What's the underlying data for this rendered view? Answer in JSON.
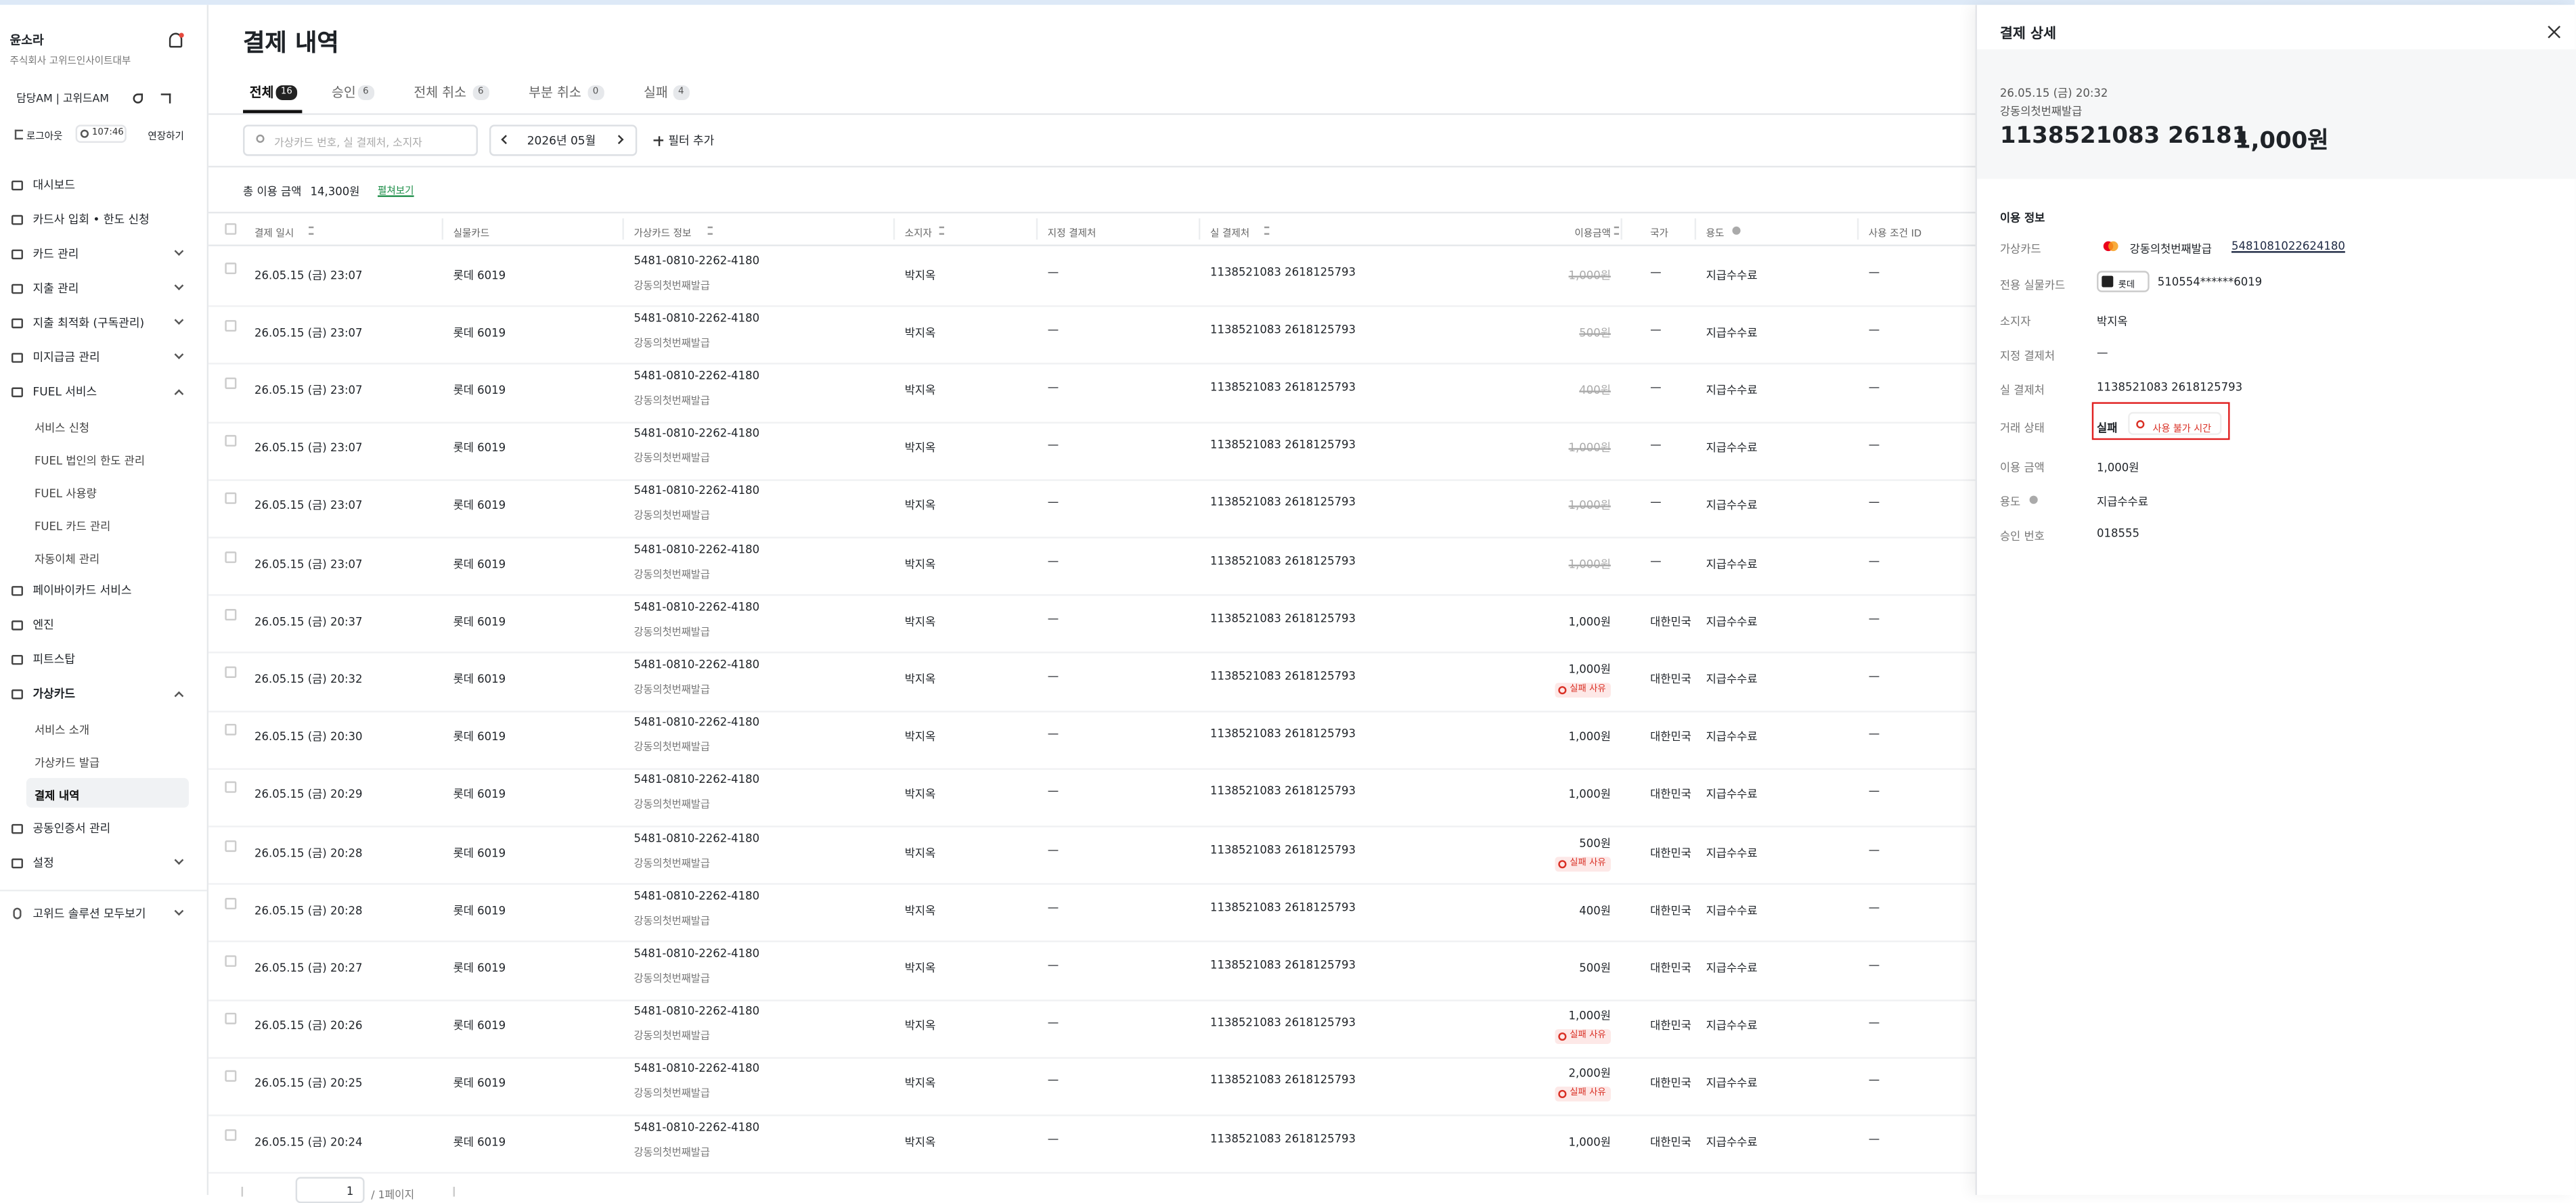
{
  "sidebar": {
    "user": "윤소라",
    "company": "주식회사 고위드인사이트대부",
    "manager": "담당AM | 고위드AM",
    "logout": "로그아웃",
    "timer": "107:46",
    "extend": "연장하기",
    "nav": [
      {
        "label": "대시보드"
      },
      {
        "label": "카드사 입회 • 한도 신청"
      },
      {
        "label": "카드 관리",
        "chevron": "down"
      },
      {
        "label": "지출 관리",
        "chevron": "down"
      },
      {
        "label": "지출 최적화 (구독관리)",
        "chevron": "down"
      },
      {
        "label": "미지급금 관리",
        "chevron": "down"
      },
      {
        "label": "FUEL 서비스",
        "chevron": "up",
        "children": [
          {
            "label": "서비스 신청"
          },
          {
            "label": "FUEL 법인의 한도 관리"
          },
          {
            "label": "FUEL 사용량"
          },
          {
            "label": "FUEL 카드 관리"
          },
          {
            "label": "자동이체 관리"
          }
        ]
      },
      {
        "label": "페이바이카드 서비스"
      },
      {
        "label": "엔진"
      },
      {
        "label": "피트스탑"
      },
      {
        "label": "가상카드",
        "chevron": "up",
        "bold": true,
        "children": [
          {
            "label": "서비스 소개"
          },
          {
            "label": "가상카드 발급"
          },
          {
            "label": "결제 내역",
            "active": true
          }
        ]
      },
      {
        "label": "공동인증서 관리"
      },
      {
        "label": "설정",
        "chevron": "down"
      }
    ],
    "solutions": "고위드 솔루션 모두보기"
  },
  "main": {
    "title": "결제 내역",
    "tabs": [
      {
        "label": "전체",
        "count": "16",
        "active": true
      },
      {
        "label": "승인",
        "count": "6"
      },
      {
        "label": "전체 취소",
        "count": "6"
      },
      {
        "label": "부분 취소",
        "count": "0"
      },
      {
        "label": "실패",
        "count": "4"
      }
    ],
    "search_placeholder": "가상카드 번호, 실 결제처, 소지자",
    "month": "2026년 05월",
    "add_filter": "필터 추가",
    "summary": {
      "label": "총 이용 금액",
      "value": "14,300원",
      "expand": "펼쳐보기"
    },
    "columns": [
      {
        "label": "결제 일시",
        "sort": true
      },
      {
        "label": "실물카드"
      },
      {
        "label": "가상카드 정보",
        "sort": true
      },
      {
        "label": "소지자",
        "sort": true
      },
      {
        "label": "지정 결제처"
      },
      {
        "label": "실 결제처",
        "sort": true
      },
      {
        "label": "이용금액",
        "sort": true
      },
      {
        "label": "국가"
      },
      {
        "label": "용도",
        "info": true
      },
      {
        "label": "사용 조건 ID"
      }
    ],
    "rows": [
      {
        "date": "26.05.15 (금) 23:07",
        "card": "롯데 6019",
        "vcard": "5481-0810-2262-4180",
        "vcard_name": "강동의첫번째발급",
        "holder": "박지옥",
        "designated": "—",
        "merchant": "1138521083 2618125793",
        "amount": "1,000원",
        "strike": true,
        "country": "—",
        "purpose": "지급수수료",
        "condition": "—"
      },
      {
        "date": "26.05.15 (금) 23:07",
        "card": "롯데 6019",
        "vcard": "5481-0810-2262-4180",
        "vcard_name": "강동의첫번째발급",
        "holder": "박지옥",
        "designated": "—",
        "merchant": "1138521083 2618125793",
        "amount": "500원",
        "strike": true,
        "country": "—",
        "purpose": "지급수수료",
        "condition": "—"
      },
      {
        "date": "26.05.15 (금) 23:07",
        "card": "롯데 6019",
        "vcard": "5481-0810-2262-4180",
        "vcard_name": "강동의첫번째발급",
        "holder": "박지옥",
        "designated": "—",
        "merchant": "1138521083 2618125793",
        "amount": "400원",
        "strike": true,
        "country": "—",
        "purpose": "지급수수료",
        "condition": "—"
      },
      {
        "date": "26.05.15 (금) 23:07",
        "card": "롯데 6019",
        "vcard": "5481-0810-2262-4180",
        "vcard_name": "강동의첫번째발급",
        "holder": "박지옥",
        "designated": "—",
        "merchant": "1138521083 2618125793",
        "amount": "1,000원",
        "strike": true,
        "country": "—",
        "purpose": "지급수수료",
        "condition": "—"
      },
      {
        "date": "26.05.15 (금) 23:07",
        "card": "롯데 6019",
        "vcard": "5481-0810-2262-4180",
        "vcard_name": "강동의첫번째발급",
        "holder": "박지옥",
        "designated": "—",
        "merchant": "1138521083 2618125793",
        "amount": "1,000원",
        "strike": true,
        "country": "—",
        "purpose": "지급수수료",
        "condition": "—"
      },
      {
        "date": "26.05.15 (금) 23:07",
        "card": "롯데 6019",
        "vcard": "5481-0810-2262-4180",
        "vcard_name": "강동의첫번째발급",
        "holder": "박지옥",
        "designated": "—",
        "merchant": "1138521083 2618125793",
        "amount": "1,000원",
        "strike": true,
        "country": "—",
        "purpose": "지급수수료",
        "condition": "—"
      },
      {
        "date": "26.05.15 (금) 20:37",
        "card": "롯데 6019",
        "vcard": "5481-0810-2262-4180",
        "vcard_name": "강동의첫번째발급",
        "holder": "박지옥",
        "designated": "—",
        "merchant": "1138521083 2618125793",
        "amount": "1,000원",
        "country": "대한민국",
        "purpose": "지급수수료",
        "condition": "—"
      },
      {
        "date": "26.05.15 (금) 20:32",
        "card": "롯데 6019",
        "vcard": "5481-0810-2262-4180",
        "vcard_name": "강동의첫번째발급",
        "holder": "박지옥",
        "designated": "—",
        "merchant": "1138521083 2618125793",
        "amount": "1,000원",
        "fail": "실패 사유",
        "country": "대한민국",
        "purpose": "지급수수료",
        "condition": "—"
      },
      {
        "date": "26.05.15 (금) 20:30",
        "card": "롯데 6019",
        "vcard": "5481-0810-2262-4180",
        "vcard_name": "강동의첫번째발급",
        "holder": "박지옥",
        "designated": "—",
        "merchant": "1138521083 2618125793",
        "amount": "1,000원",
        "country": "대한민국",
        "purpose": "지급수수료",
        "condition": "—"
      },
      {
        "date": "26.05.15 (금) 20:29",
        "card": "롯데 6019",
        "vcard": "5481-0810-2262-4180",
        "vcard_name": "강동의첫번째발급",
        "holder": "박지옥",
        "designated": "—",
        "merchant": "1138521083 2618125793",
        "amount": "1,000원",
        "country": "대한민국",
        "purpose": "지급수수료",
        "condition": "—"
      },
      {
        "date": "26.05.15 (금) 20:28",
        "card": "롯데 6019",
        "vcard": "5481-0810-2262-4180",
        "vcard_name": "강동의첫번째발급",
        "holder": "박지옥",
        "designated": "—",
        "merchant": "1138521083 2618125793",
        "amount": "500원",
        "fail": "실패 사유",
        "country": "대한민국",
        "purpose": "지급수수료",
        "condition": "—"
      },
      {
        "date": "26.05.15 (금) 20:28",
        "card": "롯데 6019",
        "vcard": "5481-0810-2262-4180",
        "vcard_name": "강동의첫번째발급",
        "holder": "박지옥",
        "designated": "—",
        "merchant": "1138521083 2618125793",
        "amount": "400원",
        "country": "대한민국",
        "purpose": "지급수수료",
        "condition": "—"
      },
      {
        "date": "26.05.15 (금) 20:27",
        "card": "롯데 6019",
        "vcard": "5481-0810-2262-4180",
        "vcard_name": "강동의첫번째발급",
        "holder": "박지옥",
        "designated": "—",
        "merchant": "1138521083 2618125793",
        "amount": "500원",
        "country": "대한민국",
        "purpose": "지급수수료",
        "condition": "—"
      },
      {
        "date": "26.05.15 (금) 20:26",
        "card": "롯데 6019",
        "vcard": "5481-0810-2262-4180",
        "vcard_name": "강동의첫번째발급",
        "holder": "박지옥",
        "designated": "—",
        "merchant": "1138521083 2618125793",
        "amount": "1,000원",
        "fail": "실패 사유",
        "country": "대한민국",
        "purpose": "지급수수료",
        "condition": "—"
      },
      {
        "date": "26.05.15 (금) 20:25",
        "card": "롯데 6019",
        "vcard": "5481-0810-2262-4180",
        "vcard_name": "강동의첫번째발급",
        "holder": "박지옥",
        "designated": "—",
        "merchant": "1138521083 2618125793",
        "amount": "2,000원",
        "fail": "실패 사유",
        "country": "대한민국",
        "purpose": "지급수수료",
        "condition": "—"
      },
      {
        "date": "26.05.15 (금) 20:24",
        "card": "롯데 6019",
        "vcard": "5481-0810-2262-4180",
        "vcard_name": "강동의첫번째발급",
        "holder": "박지옥",
        "designated": "—",
        "merchant": "1138521083 2618125793",
        "amount": "1,000원",
        "country": "대한민국",
        "purpose": "지급수수료",
        "condition": "—"
      }
    ],
    "pagination": {
      "page": "1",
      "total": "/ 1페이지"
    }
  },
  "detail": {
    "title": "결제 상세",
    "date": "26.05.15 (금) 20:32",
    "vcard_name": "강동의첫번째발급",
    "merchant_short": "1138521083 26181",
    "amount": "1,000원",
    "section": "이용 정보",
    "fields": [
      {
        "label": "가상카드",
        "value": "강동의첫번째발급",
        "link": "5481081022624180",
        "logo": true
      },
      {
        "label": "전용 실물카드",
        "brand": "롯데",
        "value": "510554******6019"
      },
      {
        "label": "소지자",
        "value": "박지옥"
      },
      {
        "label": "지정 결제처",
        "value": "—"
      },
      {
        "label": "실 결제처",
        "value": "1138521083 2618125793"
      },
      {
        "label": "거래 상태",
        "value": "실패",
        "badge": "사용 불가 시간",
        "highlight": true
      },
      {
        "label": "이용 금액",
        "value": "1,000원"
      },
      {
        "label": "용도",
        "value": "지급수수료",
        "info": true
      },
      {
        "label": "승인 번호",
        "value": "018555"
      }
    ]
  }
}
